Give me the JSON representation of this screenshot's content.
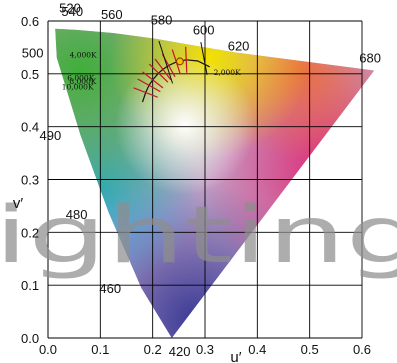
{
  "chart_data": {
    "type": "scatter",
    "title": "",
    "xlabel": "u′",
    "ylabel": "v′",
    "xlim": [
      0,
      0.6
    ],
    "ylim": [
      0,
      0.6
    ],
    "x_ticks": [
      "0.0",
      "0.1",
      "0.2",
      "0.3",
      "0.4",
      "0.5",
      "0.6"
    ],
    "y_ticks": [
      "0.1",
      "0.2",
      "0.3",
      "0.4",
      "0.5",
      "0.6"
    ],
    "grid": true,
    "watermark": "ighting",
    "spectral_locus": [
      {
        "label": "420",
        "u": 0.2365,
        "v": 0.0
      },
      {
        "label": "460",
        "u": 0.1785,
        "v": 0.0945
      },
      {
        "label": "480",
        "u": 0.1162,
        "v": 0.2368
      },
      {
        "label": "490",
        "u": 0.0621,
        "v": 0.384
      },
      {
        "label": "500",
        "u": 0.0168,
        "v": 0.5305
      },
      {
        "label": "520",
        "u": 0.0137,
        "v": 0.5855
      },
      {
        "label": "540",
        "u": 0.0543,
        "v": 0.5832
      },
      {
        "label": "560",
        "u": 0.1241,
        "v": 0.5773
      },
      {
        "label": "580",
        "u": 0.2039,
        "v": 0.5666
      },
      {
        "label": "600",
        "u": 0.2901,
        "v": 0.5518
      },
      {
        "label": "620",
        "u": 0.3568,
        "v": 0.5405
      },
      {
        "label": "680",
        "u": 0.6234,
        "v": 0.5063
      }
    ],
    "planckian_locus": [
      {
        "u": 0.3088,
        "v": 0.5134
      },
      {
        "u": 0.2862,
        "v": 0.5243
      },
      {
        "u": 0.2641,
        "v": 0.5266
      },
      {
        "u": 0.2452,
        "v": 0.5225
      },
      {
        "u": 0.2306,
        "v": 0.5158
      },
      {
        "u": 0.2196,
        "v": 0.5084
      },
      {
        "u": 0.2113,
        "v": 0.5013
      },
      {
        "u": 0.2001,
        "v": 0.4886
      },
      {
        "u": 0.193,
        "v": 0.4783
      },
      {
        "u": 0.1866,
        "v": 0.4646
      },
      {
        "u": 0.1805,
        "v": 0.4465
      }
    ],
    "cct_labels": [
      {
        "label": "2,000K",
        "u": 0.305,
        "v": 0.517
      },
      {
        "label": "4,000K",
        "u": 0.2247,
        "v": 0.5118
      },
      {
        "label": "6,000K",
        "u": 0.2011,
        "v": 0.4833
      },
      {
        "label": "8,000K",
        "u": 0.1917,
        "v": 0.4711
      },
      {
        "label": "10,000K",
        "u": 0.1867,
        "v": 0.4645
      }
    ],
    "reference_point": {
      "u": 0.252,
      "v": 0.5236
    }
  }
}
